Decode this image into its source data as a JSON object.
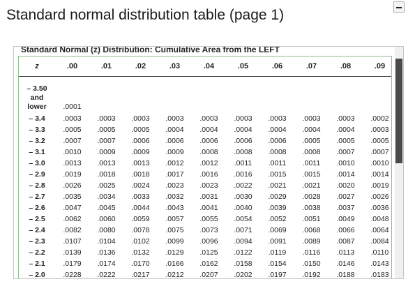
{
  "page_title": "Standard normal distribution table (page 1)",
  "menu_button_icon": "collapse-icon",
  "table": {
    "heading": "Standard Normal (z) Distribution: Cumulative Area from the LEFT",
    "z_header": "z",
    "columns": [
      ".00",
      ".01",
      ".02",
      ".03",
      ".04",
      ".05",
      ".06",
      ".07",
      ".08",
      ".09"
    ],
    "first_row": {
      "z_lines": [
        "– 3.50",
        "and",
        "lower"
      ],
      "values": [
        ".0001",
        "",
        "",
        "",
        "",
        "",
        "",
        "",
        "",
        ""
      ]
    },
    "rows": [
      {
        "z": "– 3.4",
        "values": [
          ".0003",
          ".0003",
          ".0003",
          ".0003",
          ".0003",
          ".0003",
          ".0003",
          ".0003",
          ".0003",
          ".0002"
        ]
      },
      {
        "z": "– 3.3",
        "values": [
          ".0005",
          ".0005",
          ".0005",
          ".0004",
          ".0004",
          ".0004",
          ".0004",
          ".0004",
          ".0004",
          ".0003"
        ]
      },
      {
        "z": "– 3.2",
        "values": [
          ".0007",
          ".0007",
          ".0006",
          ".0006",
          ".0006",
          ".0006",
          ".0006",
          ".0005",
          ".0005",
          ".0005"
        ]
      },
      {
        "z": "– 3.1",
        "values": [
          ".0010",
          ".0009",
          ".0009",
          ".0009",
          ".0008",
          ".0008",
          ".0008",
          ".0008",
          ".0007",
          ".0007"
        ]
      },
      {
        "z": "– 3.0",
        "values": [
          ".0013",
          ".0013",
          ".0013",
          ".0012",
          ".0012",
          ".0011",
          ".0011",
          ".0011",
          ".0010",
          ".0010"
        ]
      },
      {
        "z": "– 2.9",
        "values": [
          ".0019",
          ".0018",
          ".0018",
          ".0017",
          ".0016",
          ".0016",
          ".0015",
          ".0015",
          ".0014",
          ".0014"
        ]
      },
      {
        "z": "– 2.8",
        "values": [
          ".0026",
          ".0025",
          ".0024",
          ".0023",
          ".0023",
          ".0022",
          ".0021",
          ".0021",
          ".0020",
          ".0019"
        ]
      },
      {
        "z": "– 2.7",
        "values": [
          ".0035",
          ".0034",
          ".0033",
          ".0032",
          ".0031",
          ".0030",
          ".0029",
          ".0028",
          ".0027",
          ".0026"
        ]
      },
      {
        "z": "– 2.6",
        "values": [
          ".0047",
          ".0045",
          ".0044",
          ".0043",
          ".0041",
          ".0040",
          ".0039",
          ".0038",
          ".0037",
          ".0036"
        ]
      },
      {
        "z": "– 2.5",
        "values": [
          ".0062",
          ".0060",
          ".0059",
          ".0057",
          ".0055",
          ".0054",
          ".0052",
          ".0051",
          ".0049",
          ".0048"
        ]
      },
      {
        "z": "– 2.4",
        "values": [
          ".0082",
          ".0080",
          ".0078",
          ".0075",
          ".0073",
          ".0071",
          ".0069",
          ".0068",
          ".0066",
          ".0064"
        ]
      },
      {
        "z": "– 2.3",
        "values": [
          ".0107",
          ".0104",
          ".0102",
          ".0099",
          ".0096",
          ".0094",
          ".0091",
          ".0089",
          ".0087",
          ".0084"
        ]
      },
      {
        "z": "– 2.2",
        "values": [
          ".0139",
          ".0136",
          ".0132",
          ".0129",
          ".0125",
          ".0122",
          ".0119",
          ".0116",
          ".0113",
          ".0110"
        ]
      },
      {
        "z": "– 2.1",
        "values": [
          ".0179",
          ".0174",
          ".0170",
          ".0166",
          ".0162",
          ".0158",
          ".0154",
          ".0150",
          ".0146",
          ".0143"
        ]
      },
      {
        "z": "– 2.0",
        "values": [
          ".0228",
          ".0222",
          ".0217",
          ".0212",
          ".0207",
          ".0202",
          ".0197",
          ".0192",
          ".0188",
          ".0183"
        ]
      }
    ]
  }
}
